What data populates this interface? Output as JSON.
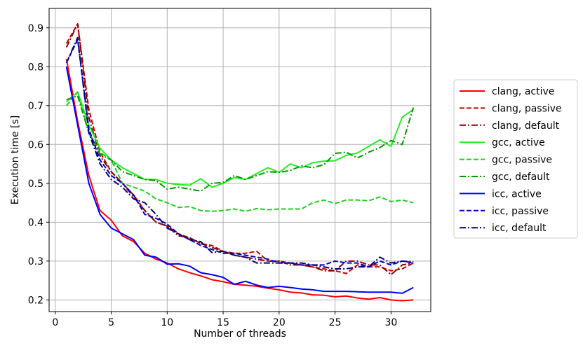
{
  "chart_data": {
    "type": "line",
    "title": "",
    "xlabel": "Number of threads",
    "ylabel": "Execution time [s]",
    "xlim": [
      -0.55,
      33.55
    ],
    "ylim": [
      0.17,
      0.95
    ],
    "xticks": [
      0,
      5,
      10,
      15,
      20,
      25,
      30
    ],
    "yticks": [
      0.2,
      0.3,
      0.4,
      0.5,
      0.6,
      0.7,
      0.8,
      0.9
    ],
    "grid": true,
    "legend_position": "right, outside",
    "x": [
      1,
      2,
      3,
      4,
      5,
      6,
      7,
      8,
      9,
      10,
      11,
      12,
      13,
      14,
      15,
      16,
      17,
      18,
      19,
      20,
      21,
      22,
      23,
      24,
      25,
      26,
      27,
      28,
      29,
      30,
      31,
      32
    ],
    "series": [
      {
        "name": "clang, active",
        "color": "#ff0000",
        "dash": "solid",
        "values": [
          0.82,
          0.66,
          0.52,
          0.43,
          0.405,
          0.365,
          0.35,
          0.32,
          0.305,
          0.295,
          0.28,
          0.27,
          0.262,
          0.252,
          0.247,
          0.24,
          0.238,
          0.235,
          0.23,
          0.226,
          0.22,
          0.218,
          0.213,
          0.212,
          0.208,
          0.21,
          0.205,
          0.202,
          0.206,
          0.2,
          0.198,
          0.2
        ]
      },
      {
        "name": "clang, passive",
        "color": "#cc0000",
        "dash": "dashed",
        "values": [
          0.86,
          0.91,
          0.69,
          0.58,
          0.53,
          0.5,
          0.47,
          0.43,
          0.4,
          0.39,
          0.37,
          0.36,
          0.345,
          0.34,
          0.325,
          0.32,
          0.32,
          0.325,
          0.3,
          0.3,
          0.295,
          0.29,
          0.285,
          0.28,
          0.275,
          0.268,
          0.29,
          0.285,
          0.285,
          0.275,
          0.28,
          0.295
        ]
      },
      {
        "name": "clang, default",
        "color": "#8b0000",
        "dash": "dashdot",
        "values": [
          0.85,
          0.91,
          0.67,
          0.57,
          0.53,
          0.5,
          0.465,
          0.43,
          0.4,
          0.39,
          0.365,
          0.36,
          0.345,
          0.335,
          0.325,
          0.315,
          0.31,
          0.305,
          0.3,
          0.3,
          0.29,
          0.29,
          0.285,
          0.275,
          0.275,
          0.3,
          0.3,
          0.29,
          0.29,
          0.265,
          0.29,
          0.295
        ]
      },
      {
        "name": "gcc, active",
        "color": "#22ee22",
        "dash": "solid",
        "values": [
          0.71,
          0.735,
          0.65,
          0.59,
          0.56,
          0.54,
          0.525,
          0.51,
          0.51,
          0.5,
          0.497,
          0.495,
          0.512,
          0.49,
          0.5,
          0.515,
          0.51,
          0.525,
          0.54,
          0.528,
          0.55,
          0.54,
          0.553,
          0.557,
          0.558,
          0.572,
          0.578,
          0.595,
          0.612,
          0.595,
          0.67,
          0.69
        ]
      },
      {
        "name": "gcc, passive",
        "color": "#22cc22",
        "dash": "dashed",
        "values": [
          0.7,
          0.735,
          0.63,
          0.58,
          0.56,
          0.5,
          0.49,
          0.48,
          0.46,
          0.45,
          0.438,
          0.44,
          0.43,
          0.428,
          0.43,
          0.434,
          0.428,
          0.435,
          0.432,
          0.434,
          0.434,
          0.434,
          0.45,
          0.457,
          0.448,
          0.457,
          0.457,
          0.455,
          0.465,
          0.453,
          0.457,
          0.45
        ]
      },
      {
        "name": "gcc, default",
        "color": "#009900",
        "dash": "dashdot",
        "values": [
          0.715,
          0.725,
          0.63,
          0.575,
          0.56,
          0.53,
          0.52,
          0.51,
          0.507,
          0.485,
          0.49,
          0.485,
          0.48,
          0.5,
          0.502,
          0.52,
          0.51,
          0.52,
          0.53,
          0.528,
          0.533,
          0.545,
          0.54,
          0.548,
          0.577,
          0.58,
          0.565,
          0.58,
          0.592,
          0.61,
          0.6,
          0.695
        ]
      },
      {
        "name": "icc, active",
        "color": "#0000ff",
        "dash": "solid",
        "values": [
          0.8,
          0.65,
          0.5,
          0.42,
          0.385,
          0.37,
          0.355,
          0.315,
          0.31,
          0.292,
          0.293,
          0.287,
          0.27,
          0.265,
          0.258,
          0.24,
          0.248,
          0.238,
          0.232,
          0.235,
          0.232,
          0.228,
          0.226,
          0.222,
          0.222,
          0.222,
          0.221,
          0.22,
          0.22,
          0.22,
          0.217,
          0.232
        ]
      },
      {
        "name": "icc, passive",
        "color": "#0000cc",
        "dash": "dashed",
        "values": [
          0.81,
          0.87,
          0.64,
          0.56,
          0.52,
          0.5,
          0.47,
          0.42,
          0.41,
          0.395,
          0.37,
          0.355,
          0.34,
          0.33,
          0.32,
          0.32,
          0.315,
          0.31,
          0.305,
          0.295,
          0.295,
          0.29,
          0.29,
          0.29,
          0.3,
          0.295,
          0.295,
          0.285,
          0.3,
          0.29,
          0.3,
          0.295
        ]
      },
      {
        "name": "icc, default",
        "color": "#000080",
        "dash": "dashdot",
        "values": [
          0.81,
          0.875,
          0.63,
          0.55,
          0.51,
          0.49,
          0.46,
          0.45,
          0.42,
          0.385,
          0.37,
          0.355,
          0.35,
          0.322,
          0.325,
          0.315,
          0.31,
          0.295,
          0.295,
          0.295,
          0.295,
          0.295,
          0.29,
          0.285,
          0.28,
          0.28,
          0.285,
          0.285,
          0.31,
          0.295,
          0.3,
          0.298
        ]
      }
    ]
  }
}
